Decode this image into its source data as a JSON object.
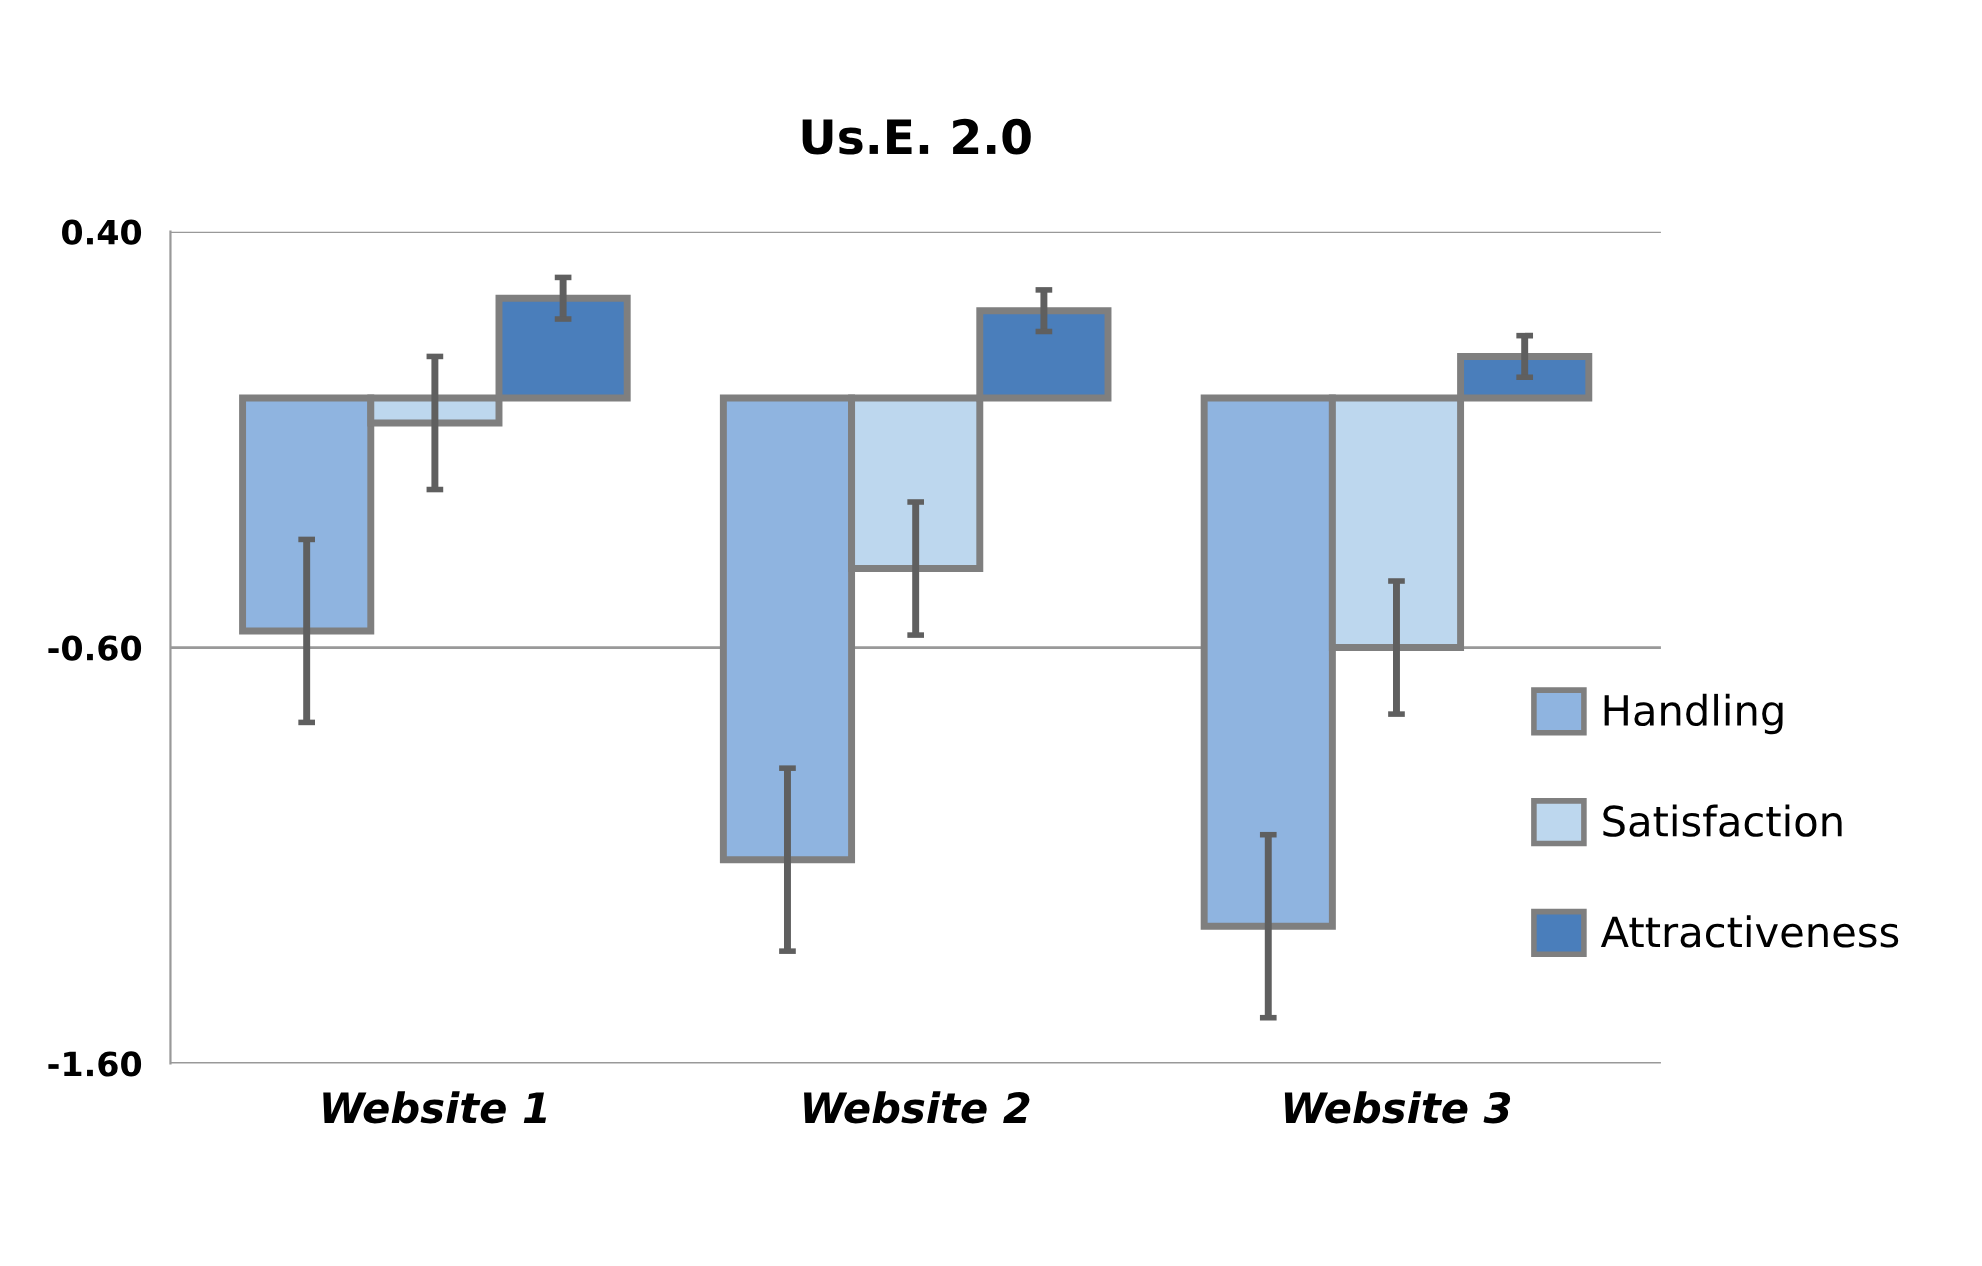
{
  "chart_data": {
    "type": "bar",
    "title": "Us.E. 2.0",
    "categories": [
      "Website 1",
      "Website 2",
      "Website 3"
    ],
    "series": [
      {
        "name": "Handling",
        "color": "#8fb4e0",
        "values": [
          -0.56,
          -1.11,
          -1.27
        ],
        "errors": [
          0.22,
          0.22,
          0.22
        ]
      },
      {
        "name": "Satisfaction",
        "color": "#bdd7ee",
        "values": [
          -0.06,
          -0.41,
          -0.6
        ],
        "errors": [
          0.16,
          0.16,
          0.16
        ]
      },
      {
        "name": "Attractiveness",
        "color": "#4a7ebb",
        "values": [
          0.24,
          0.21,
          0.1
        ],
        "errors": [
          0.05,
          0.05,
          0.05
        ]
      }
    ],
    "ylim": [
      -1.6,
      0.4
    ],
    "yticks": [
      {
        "value": 0.4,
        "label": "0.40"
      },
      {
        "value": -0.6,
        "label": "-0.60"
      },
      {
        "value": -1.6,
        "label": "-1.60"
      }
    ],
    "grid": "y",
    "legend": "right"
  }
}
